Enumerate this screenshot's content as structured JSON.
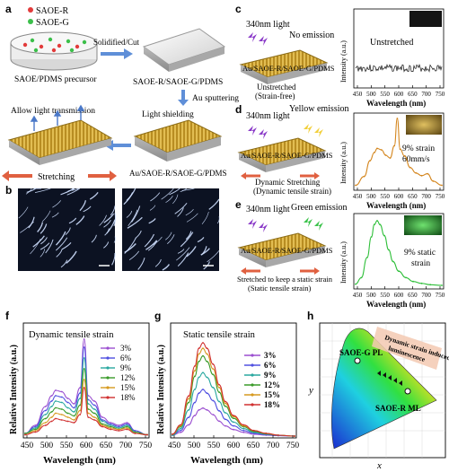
{
  "panel_letters": [
    "a",
    "b",
    "c",
    "d",
    "e",
    "f",
    "g",
    "h"
  ],
  "panel_a": {
    "legend_r": "SAOE-R",
    "legend_g": "SAOE-G",
    "precursor": "SAOE/PDMS precursor",
    "step1": "Solidified/Cut",
    "film": "SAOE-R/SAOE-G/PDMS",
    "step2": "Au sputtering",
    "allow": "Allow light transmission",
    "shield": "Light shielding",
    "stretching": "Stretching",
    "composite": "Au/SAOE-R/SAOE-G/PDMS"
  },
  "panel_c": {
    "light": "340nm light",
    "emission": "No emission",
    "layer": "Au/SAOE-R/SAOE-G/PDMS",
    "cap1": "Unstretched",
    "cap2": "(Strain-free)",
    "plot_label": "Unstretched"
  },
  "panel_d": {
    "light": "340nm light",
    "emission": "Yellow emission",
    "layer": "Au/SAOE-R/SAOE-G/PDMS",
    "cap1": "Dynamic Stretching",
    "cap2": "(Dynamic tensile strain)",
    "plot_label1": "9% strain",
    "plot_label2": "60mm/s"
  },
  "panel_e": {
    "light": "340nm light",
    "emission": "Green emission",
    "layer": "Au/SAOE-R/SAOE-G/PDMS",
    "cap1": "Stretched to keep a static strain",
    "cap2": "(Static tensile strain)",
    "plot_label1": "9% static",
    "plot_label2": "strain"
  },
  "small_axes": {
    "ylabel": "Intensity (a.u.)",
    "xlabel": "Wavelength (nm)",
    "xticks": [
      "450",
      "500",
      "550",
      "600",
      "650",
      "700",
      "750"
    ]
  },
  "panel_f": {
    "title": "Dynamic tensile strain",
    "ylabel": "Relative Intensity (a.u.)",
    "xlabel": "Wavelength (nm)",
    "xticks": [
      "450",
      "500",
      "550",
      "600",
      "650",
      "700",
      "750"
    ],
    "legend": [
      "3%",
      "6%",
      "9%",
      "12%",
      "15%",
      "18%"
    ]
  },
  "panel_g": {
    "title": "Static tensile strain",
    "ylabel": "Relative Intensity (a.u.)",
    "xlabel": "Wavelength (nm)",
    "xticks": [
      "450",
      "500",
      "550",
      "600",
      "650",
      "700",
      "750"
    ],
    "legend": [
      "3%",
      "6%",
      "9%",
      "12%",
      "15%",
      "18%"
    ]
  },
  "panel_h": {
    "ylabel": "y",
    "xlabel": "x",
    "label_pl": "SAOE-G PL",
    "label_ml": "SAOE-R ML",
    "annot1": "Dynamic strain induced",
    "annot2": "luminescence"
  },
  "chart_data": [
    {
      "type": "line",
      "panel": "f",
      "title": "Dynamic tensile strain",
      "xlabel": "Wavelength (nm)",
      "ylabel": "Relative Intensity (a.u.)",
      "xlim": [
        450,
        750
      ],
      "x": [
        450,
        475,
        500,
        515,
        525,
        540,
        555,
        570,
        585,
        595,
        605,
        620,
        640,
        660,
        680,
        700,
        720,
        750
      ],
      "series": [
        {
          "name": "3%",
          "color": "#9b4fd0",
          "values": [
            0.02,
            0.08,
            0.22,
            0.3,
            0.34,
            0.33,
            0.28,
            0.24,
            0.36,
            0.72,
            0.3,
            0.26,
            0.14,
            0.1,
            0.08,
            0.1,
            0.04,
            0.01
          ]
        },
        {
          "name": "6%",
          "color": "#5050e0",
          "values": [
            0.02,
            0.07,
            0.19,
            0.26,
            0.3,
            0.29,
            0.25,
            0.21,
            0.32,
            0.66,
            0.27,
            0.23,
            0.12,
            0.09,
            0.07,
            0.09,
            0.04,
            0.01
          ]
        },
        {
          "name": "9%",
          "color": "#2aa8a0",
          "values": [
            0.02,
            0.06,
            0.16,
            0.22,
            0.26,
            0.25,
            0.21,
            0.18,
            0.28,
            0.58,
            0.24,
            0.2,
            0.11,
            0.08,
            0.06,
            0.08,
            0.03,
            0.01
          ]
        },
        {
          "name": "12%",
          "color": "#3a9b2a",
          "values": [
            0.02,
            0.05,
            0.13,
            0.18,
            0.21,
            0.2,
            0.17,
            0.15,
            0.23,
            0.5,
            0.2,
            0.17,
            0.09,
            0.07,
            0.05,
            0.07,
            0.03,
            0.01
          ]
        },
        {
          "name": "15%",
          "color": "#d69a20",
          "values": [
            0.01,
            0.04,
            0.1,
            0.14,
            0.17,
            0.16,
            0.14,
            0.12,
            0.19,
            0.42,
            0.17,
            0.14,
            0.08,
            0.06,
            0.05,
            0.06,
            0.02,
            0.01
          ]
        },
        {
          "name": "18%",
          "color": "#d03030",
          "values": [
            0.01,
            0.03,
            0.08,
            0.11,
            0.13,
            0.12,
            0.11,
            0.1,
            0.16,
            0.36,
            0.14,
            0.12,
            0.07,
            0.05,
            0.04,
            0.05,
            0.02,
            0.01
          ]
        }
      ]
    },
    {
      "type": "line",
      "panel": "g",
      "title": "Static tensile strain",
      "xlabel": "Wavelength (nm)",
      "ylabel": "Relative Intensity (a.u.)",
      "xlim": [
        450,
        750
      ],
      "x": [
        450,
        470,
        490,
        505,
        515,
        525,
        535,
        550,
        565,
        580,
        600,
        625,
        650,
        680,
        710,
        750
      ],
      "series": [
        {
          "name": "3%",
          "color": "#9b4fd0",
          "values": [
            0.01,
            0.04,
            0.12,
            0.22,
            0.28,
            0.3,
            0.28,
            0.23,
            0.16,
            0.11,
            0.07,
            0.04,
            0.02,
            0.01,
            0.005,
            0
          ]
        },
        {
          "name": "6%",
          "color": "#5050e0",
          "values": [
            0.01,
            0.06,
            0.2,
            0.36,
            0.46,
            0.5,
            0.46,
            0.38,
            0.27,
            0.18,
            0.11,
            0.06,
            0.03,
            0.015,
            0.005,
            0
          ]
        },
        {
          "name": "9%",
          "color": "#2aa8a0",
          "values": [
            0.01,
            0.08,
            0.28,
            0.5,
            0.63,
            0.68,
            0.63,
            0.52,
            0.37,
            0.25,
            0.15,
            0.08,
            0.04,
            0.02,
            0.01,
            0
          ]
        },
        {
          "name": "12%",
          "color": "#3a9b2a",
          "values": [
            0.02,
            0.1,
            0.36,
            0.64,
            0.8,
            0.86,
            0.8,
            0.66,
            0.47,
            0.32,
            0.19,
            0.1,
            0.05,
            0.025,
            0.01,
            0
          ]
        },
        {
          "name": "15%",
          "color": "#d69a20",
          "values": [
            0.02,
            0.11,
            0.4,
            0.7,
            0.88,
            0.94,
            0.88,
            0.72,
            0.52,
            0.35,
            0.21,
            0.11,
            0.06,
            0.03,
            0.01,
            0
          ]
        },
        {
          "name": "18%",
          "color": "#d03030",
          "values": [
            0.02,
            0.12,
            0.43,
            0.75,
            0.94,
            1.0,
            0.94,
            0.77,
            0.55,
            0.37,
            0.22,
            0.12,
            0.06,
            0.03,
            0.01,
            0
          ]
        }
      ]
    },
    {
      "type": "line",
      "panel": "d",
      "xlabel": "Wavelength (nm)",
      "ylabel": "Intensity (a.u.)",
      "xlim": [
        450,
        750
      ],
      "x": [
        450,
        480,
        500,
        515,
        525,
        540,
        555,
        570,
        585,
        595,
        605,
        620,
        640,
        660,
        680,
        700,
        720,
        750
      ],
      "series": [
        {
          "color": "#d4861e",
          "values": [
            0.02,
            0.15,
            0.38,
            0.5,
            0.56,
            0.54,
            0.46,
            0.42,
            0.6,
            1.0,
            0.55,
            0.45,
            0.28,
            0.2,
            0.16,
            0.19,
            0.08,
            0.02
          ]
        }
      ]
    },
    {
      "type": "line",
      "panel": "e",
      "xlabel": "Wavelength (nm)",
      "ylabel": "Intensity (a.u.)",
      "xlim": [
        450,
        750
      ],
      "x": [
        450,
        470,
        490,
        505,
        515,
        525,
        535,
        550,
        565,
        580,
        600,
        625,
        650,
        680,
        710,
        750
      ],
      "series": [
        {
          "color": "#2fbf3a",
          "values": [
            0.02,
            0.12,
            0.43,
            0.75,
            0.94,
            1.0,
            0.94,
            0.77,
            0.55,
            0.37,
            0.22,
            0.12,
            0.06,
            0.03,
            0.01,
            0
          ]
        }
      ]
    }
  ]
}
